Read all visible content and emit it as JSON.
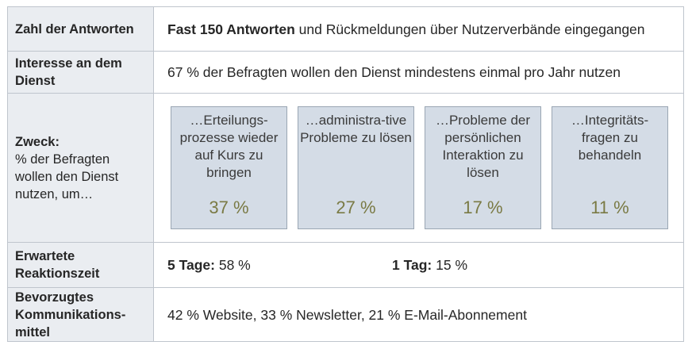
{
  "rows": [
    {
      "label": "Zahl der Antworten",
      "value_bold": "Fast 150 Antworten",
      "value_rest": " und Rückmeldungen über Nutzerverbände eingegangen"
    },
    {
      "label": "Interesse an dem Dienst",
      "value": "67 % der Befragten wollen den Dienst mindestens einmal pro Jahr nutzen"
    },
    {
      "label_title": "Zweck:",
      "label_sub": "% der Befragten wollen den Dienst nutzen, um…",
      "boxes": [
        {
          "text": "…Erteilungs-prozesse wieder auf Kurs zu bringen",
          "percent": "37 %"
        },
        {
          "text": "…administra-tive Probleme zu lösen",
          "percent": "27 %"
        },
        {
          "text": "…Probleme der persönlichen Interaktion zu lösen",
          "percent": "17 %"
        },
        {
          "text": "…Integritäts-fragen zu behandeln",
          "percent": "11 %"
        }
      ]
    },
    {
      "label": "Erwartete Reaktionszeit",
      "items": [
        {
          "bold": "5 Tage:",
          "rest": " 58 %"
        },
        {
          "bold": "1 Tag:",
          "rest": " 15 %"
        }
      ]
    },
    {
      "label": "Bevorzugtes Kommunikations-mittel",
      "value": "42 % Website, 33 % Newsletter, 21 % E-Mail-Abonnement"
    }
  ]
}
